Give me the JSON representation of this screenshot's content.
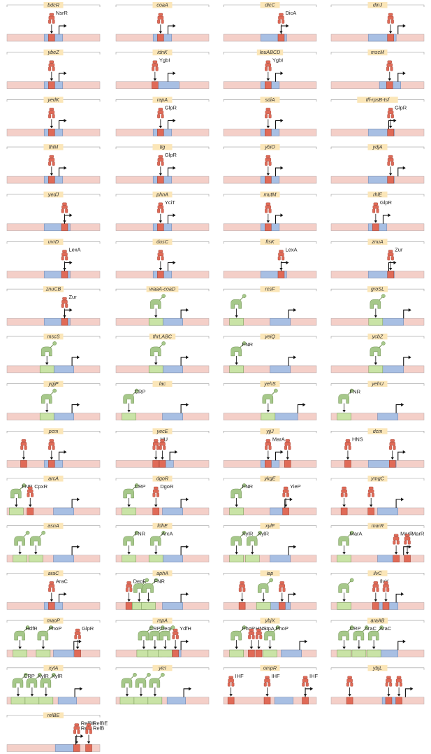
{
  "colors": {
    "background": "#ffffff",
    "dna": "#f4cfc8",
    "dna_stroke": "#b6a6a6",
    "promoter": "#a8bfe3",
    "promoter_stroke": "#6a7fa8",
    "repressor_site": "#e06a57",
    "repressor_stroke": "#9c3a2c",
    "activator_site": "#c9e3a6",
    "activator_stroke": "#6f8f50",
    "repressor_icon": "#e06a57",
    "activator_icon": "#a6c88a",
    "label_bg": "#fbe6b8",
    "arrow": "#111111"
  },
  "icons": {
    "repressor": "repressor-protein-icon",
    "activator": "activator-protein-icon",
    "tss": "transcription-start-arrow-icon"
  },
  "panels": [
    {
      "gene": "bdcR",
      "promoter": [
        0.4,
        0.6
      ],
      "sites": [
        {
          "t": "r",
          "p": 0.48,
          "tf": "NsrR"
        }
      ],
      "tss": 0.56
    },
    {
      "gene": "coaA",
      "promoter": [
        0.4,
        0.6
      ],
      "sites": [
        {
          "t": "r",
          "p": 0.48
        }
      ],
      "tss": 0.56
    },
    {
      "gene": "dicC",
      "promoter": [
        0.4,
        0.68
      ],
      "sites": [
        {
          "t": "r",
          "p": 0.62,
          "tf": "DicA"
        }
      ],
      "tss": 0.62
    },
    {
      "gene": "dinJ",
      "promoter": [
        0.4,
        0.7
      ],
      "sites": [
        {
          "t": "r",
          "p": 0.64
        }
      ],
      "tss": 0.72
    },
    {
      "gene": "ybeZ",
      "promoter": [
        0.4,
        0.6
      ],
      "sites": [
        {
          "t": "r",
          "p": 0.48
        }
      ],
      "tss": 0.56
    },
    {
      "gene": "idnK",
      "promoter": [
        0.4,
        0.68
      ],
      "sites": [
        {
          "t": "r",
          "p": 0.42,
          "tf": "YgbI"
        }
      ],
      "tss": 0.56
    },
    {
      "gene": "leuABCD",
      "promoter": [
        0.4,
        0.6
      ],
      "sites": [
        {
          "t": "r",
          "p": 0.48,
          "tf": "YgbI"
        }
      ],
      "tss": 0.56
    },
    {
      "gene": "mscM",
      "promoter": [
        0.52,
        0.75
      ],
      "sites": [
        {
          "t": "r",
          "p": 0.63
        }
      ],
      "tss": 0.72
    },
    {
      "gene": "yedK",
      "promoter": [
        0.4,
        0.6
      ],
      "sites": [
        {
          "t": "r",
          "p": 0.48
        }
      ],
      "tss": 0.56
    },
    {
      "gene": "rapA",
      "promoter": [
        0.4,
        0.6
      ],
      "sites": [
        {
          "t": "r",
          "p": 0.48,
          "tf": "GlpR"
        }
      ],
      "tss": 0.56
    },
    {
      "gene": "sdiA",
      "promoter": [
        0.4,
        0.6
      ],
      "sites": [
        {
          "t": "r",
          "p": 0.48
        }
      ],
      "tss": 0.56
    },
    {
      "gene": "tff-rpsB-tsf",
      "promoter": [
        0.4,
        0.68
      ],
      "sites": [
        {
          "t": "r",
          "p": 0.64,
          "tf": "GlpR"
        }
      ],
      "tss": 0.62
    },
    {
      "gene": "thiM",
      "promoter": [
        0.4,
        0.6
      ],
      "sites": [
        {
          "t": "r",
          "p": 0.48
        }
      ],
      "tss": 0.56
    },
    {
      "gene": "tig",
      "promoter": [
        0.4,
        0.6
      ],
      "sites": [
        {
          "t": "r",
          "p": 0.48,
          "tf": "GlpR"
        }
      ],
      "tss": 0.56
    },
    {
      "gene": "ybiO",
      "promoter": [
        0.4,
        0.6
      ],
      "sites": [
        {
          "t": "r",
          "p": 0.48
        }
      ],
      "tss": 0.56
    },
    {
      "gene": "ydjA",
      "promoter": [
        0.4,
        0.68
      ],
      "sites": [
        {
          "t": "r",
          "p": 0.64
        }
      ],
      "tss": 0.72
    },
    {
      "gene": "yedJ",
      "promoter": [
        0.4,
        0.68
      ],
      "sites": [
        {
          "t": "r",
          "p": 0.62
        }
      ],
      "tss": 0.62
    },
    {
      "gene": "phnA",
      "promoter": [
        0.4,
        0.6
      ],
      "sites": [
        {
          "t": "r",
          "p": 0.48,
          "tf": "YciT"
        }
      ],
      "tss": 0.56
    },
    {
      "gene": "mutM",
      "promoter": [
        0.4,
        0.6
      ],
      "sites": [
        {
          "t": "r",
          "p": 0.48
        }
      ],
      "tss": 0.56
    },
    {
      "gene": "rhlE",
      "promoter": [
        0.4,
        0.6
      ],
      "sites": [
        {
          "t": "r",
          "p": 0.48,
          "tf": "GlpR"
        }
      ],
      "tss": 0.56
    },
    {
      "gene": "uvrD",
      "promoter": [
        0.4,
        0.68
      ],
      "sites": [
        {
          "t": "r",
          "p": 0.62,
          "tf": "LexA"
        }
      ],
      "tss": 0.62
    },
    {
      "gene": "dusC",
      "promoter": [
        0.4,
        0.6
      ],
      "sites": [
        {
          "t": "r",
          "p": 0.48
        }
      ],
      "tss": 0.56
    },
    {
      "gene": "ftsK",
      "promoter": [
        0.4,
        0.68
      ],
      "sites": [
        {
          "t": "r",
          "p": 0.62,
          "tf": "LexA"
        }
      ],
      "tss": 0.62
    },
    {
      "gene": "znuA",
      "promoter": [
        0.4,
        0.68
      ],
      "sites": [
        {
          "t": "r",
          "p": 0.64,
          "tf": "Zur"
        }
      ],
      "tss": 0.62
    },
    {
      "gene": "znuCB",
      "promoter": [
        0.4,
        0.68
      ],
      "sites": [
        {
          "t": "r",
          "p": 0.62,
          "tf": "Zur"
        }
      ],
      "tss": 0.62
    },
    {
      "gene": "waaA-coaD",
      "promoter": [
        0.5,
        0.72
      ],
      "sites": [
        {
          "t": "a",
          "p": 0.43
        }
      ],
      "tss": 0.7
    },
    {
      "gene": "rcsF",
      "promoter": [
        0.5,
        0.72
      ],
      "sites": [
        {
          "t": "a",
          "p": 0.14
        }
      ],
      "tss": 0.7
    },
    {
      "gene": "groSL",
      "promoter": [
        0.55,
        0.78
      ],
      "sites": [
        {
          "t": "a",
          "p": 0.48
        }
      ],
      "tss": 0.78
    },
    {
      "gene": "mscS",
      "promoter": [
        0.5,
        0.72
      ],
      "sites": [
        {
          "t": "a",
          "p": 0.43
        }
      ],
      "tss": 0.7
    },
    {
      "gene": "thrLABC",
      "promoter": [
        0.5,
        0.72
      ],
      "sites": [
        {
          "t": "a",
          "p": 0.43
        }
      ],
      "tss": 0.7
    },
    {
      "gene": "yeiQ",
      "promoter": [
        0.5,
        0.72
      ],
      "sites": [
        {
          "t": "a",
          "p": 0.14,
          "tf": "FNR"
        }
      ],
      "tss": 0.7
    },
    {
      "gene": "ycbZ",
      "promoter": [
        0.55,
        0.78
      ],
      "sites": [
        {
          "t": "a",
          "p": 0.48
        }
      ],
      "tss": 0.78
    },
    {
      "gene": "ygjP",
      "promoter": [
        0.5,
        0.72
      ],
      "sites": [
        {
          "t": "a",
          "p": 0.43
        }
      ],
      "tss": 0.7
    },
    {
      "gene": "lac",
      "promoter": [
        0.5,
        0.72
      ],
      "sites": [
        {
          "t": "a",
          "p": 0.14,
          "tf": "CRP"
        }
      ],
      "tss": 0.7
    },
    {
      "gene": "yehS",
      "promoter": [
        0.55,
        0.8
      ],
      "sites": [
        {
          "t": "a",
          "p": 0.48
        }
      ],
      "tss": 0.8
    },
    {
      "gene": "yehU",
      "promoter": [
        0.5,
        0.72
      ],
      "sites": [
        {
          "t": "a",
          "p": 0.14,
          "tf": "FNR"
        }
      ],
      "tss": 0.7
    },
    {
      "gene": "pcm",
      "promoter": [
        0.4,
        0.6
      ],
      "sites": [
        {
          "t": "r",
          "p": 0.18
        },
        {
          "t": "r",
          "p": 0.48
        }
      ],
      "tss": 0.56
    },
    {
      "gene": "yecE",
      "promoter": [
        0.4,
        0.62
      ],
      "sites": [
        {
          "t": "r",
          "p": 0.43,
          "tf": "HU"
        },
        {
          "t": "r",
          "p": 0.5
        }
      ],
      "tss": 0.58
    },
    {
      "gene": "yjjJ",
      "promoter": [
        0.4,
        0.6
      ],
      "sites": [
        {
          "t": "r",
          "p": 0.48,
          "tf": "MarA"
        },
        {
          "t": "r",
          "p": 0.69
        }
      ],
      "tss": 0.56
    },
    {
      "gene": "dcm",
      "promoter": [
        0.4,
        0.7
      ],
      "sites": [
        {
          "t": "r",
          "p": 0.18,
          "tf": "HNS"
        },
        {
          "t": "r",
          "p": 0.66
        }
      ],
      "tss": 0.72
    },
    {
      "gene": "arcA",
      "promoter": [
        0.5,
        0.72
      ],
      "sites": [
        {
          "t": "a",
          "p": 0.1,
          "tf": "FNR"
        },
        {
          "t": "r",
          "p": 0.25,
          "tf": "CpxR"
        }
      ],
      "tss": 0.7
    },
    {
      "gene": "dgoR",
      "promoter": [
        0.5,
        0.72
      ],
      "sites": [
        {
          "t": "a",
          "p": 0.14,
          "tf": "CRP"
        },
        {
          "t": "r",
          "p": 0.43,
          "tf": "DgoR"
        }
      ],
      "tss": 0.7
    },
    {
      "gene": "ykgE",
      "promoter": [
        0.5,
        0.68
      ],
      "sites": [
        {
          "t": "a",
          "p": 0.14,
          "tf": "FNR"
        },
        {
          "t": "r",
          "p": 0.67,
          "tf": "YieP"
        }
      ],
      "tss": 0.66
    },
    {
      "gene": "ymgC",
      "promoter": [
        0.5,
        0.72
      ],
      "sites": [
        {
          "t": "r",
          "p": 0.14
        },
        {
          "t": "r",
          "p": 0.43
        }
      ],
      "tss": 0.7
    },
    {
      "gene": "asnA",
      "promoter": [
        0.5,
        0.72
      ],
      "sites": [
        {
          "t": "a",
          "p": 0.14
        },
        {
          "t": "a",
          "p": 0.31
        }
      ],
      "tss": 0.7
    },
    {
      "gene": "fdhE",
      "promoter": [
        0.5,
        0.72
      ],
      "sites": [
        {
          "t": "a",
          "p": 0.14,
          "tf": "FNR"
        },
        {
          "t": "a",
          "p": 0.43,
          "tf": "ArcA"
        }
      ],
      "tss": 0.7
    },
    {
      "gene": "xylF",
      "promoter": [
        0.5,
        0.72
      ],
      "sites": [
        {
          "t": "a",
          "p": 0.14,
          "tf": "XylR"
        },
        {
          "t": "a",
          "p": 0.31,
          "tf": "XylR"
        }
      ],
      "tss": 0.7
    },
    {
      "gene": "marR",
      "promoter": [
        0.5,
        0.72
      ],
      "sites": [
        {
          "t": "a",
          "p": 0.14,
          "tf": "MarA"
        },
        {
          "t": "r",
          "p": 0.7,
          "tf": "MarR"
        },
        {
          "t": "r",
          "p": 0.82,
          "tf": "MarR"
        }
      ],
      "tss": 0.78
    },
    {
      "gene": "araC",
      "promoter": [
        0.4,
        0.6
      ],
      "sites": [
        {
          "t": "r",
          "p": 0.48,
          "tf": "AraC"
        }
      ],
      "tss": 0.56
    },
    {
      "gene": "aphA",
      "promoter": [
        0.5,
        0.72
      ],
      "sites": [
        {
          "t": "r",
          "p": 0.14,
          "tf": "DeoR"
        },
        {
          "t": "a",
          "p": 0.25
        },
        {
          "t": "a",
          "p": 0.35,
          "tf": "FNR"
        }
      ],
      "tss": 0.7
    },
    {
      "gene": "iap",
      "promoter": [
        0.5,
        0.72
      ],
      "sites": [
        {
          "t": "r",
          "p": 0.2
        },
        {
          "t": "a",
          "p": 0.43
        },
        {
          "t": "r",
          "p": 0.63
        }
      ],
      "tss": 0.7
    },
    {
      "gene": "ilvC",
      "promoter": [
        0.5,
        0.72
      ],
      "sites": [
        {
          "t": "a",
          "p": 0.14
        },
        {
          "t": "r",
          "p": 0.48,
          "tf": "IlvY"
        },
        {
          "t": "r",
          "p": 0.59
        }
      ],
      "tss": 0.7
    },
    {
      "gene": "maoP",
      "promoter": [
        0.5,
        0.72
      ],
      "sites": [
        {
          "t": "a",
          "p": 0.14,
          "tf": "HdfR"
        },
        {
          "t": "a",
          "p": 0.39,
          "tf": "PhoP"
        },
        {
          "t": "r",
          "p": 0.76,
          "tf": "GlpR"
        }
      ],
      "tss": 0.72
    },
    {
      "gene": "rspA",
      "promoter": [
        0.55,
        0.7
      ],
      "sites": [
        {
          "t": "a",
          "p": 0.3,
          "tf": "CRP"
        },
        {
          "t": "a",
          "p": 0.42,
          "tf": "DeoR"
        },
        {
          "t": "a",
          "p": 0.53
        },
        {
          "t": "r",
          "p": 0.64,
          "tf": "YdfH"
        }
      ],
      "tss": 0.7
    },
    {
      "gene": "ybjX",
      "promoter": [
        0.62,
        0.84
      ],
      "sites": [
        {
          "t": "a",
          "p": 0.14,
          "tf": "PhoP"
        },
        {
          "t": "r",
          "p": 0.3,
          "tf": "HNS"
        },
        {
          "t": "r",
          "p": 0.38,
          "tf": "StpA"
        },
        {
          "t": "a",
          "p": 0.5,
          "tf": "PhoP"
        }
      ],
      "tss": 0.82
    },
    {
      "gene": "araAB",
      "promoter": [
        0.5,
        0.72
      ],
      "sites": [
        {
          "t": "a",
          "p": 0.14,
          "tf": "CRP"
        },
        {
          "t": "a",
          "p": 0.3,
          "tf": "AraC"
        },
        {
          "t": "a",
          "p": 0.46,
          "tf": "AraC"
        }
      ],
      "tss": 0.72
    },
    {
      "gene": "xylA",
      "promoter": [
        0.55,
        0.75
      ],
      "sites": [
        {
          "t": "a",
          "p": 0.12,
          "tf": "CRP"
        },
        {
          "t": "a",
          "p": 0.27,
          "tf": "XylR"
        },
        {
          "t": "a",
          "p": 0.42,
          "tf": "XylR"
        }
      ],
      "tss": 0.73
    },
    {
      "gene": "yicI",
      "promoter": [
        0.55,
        0.75
      ],
      "sites": [
        {
          "t": "a",
          "p": 0.12
        },
        {
          "t": "a",
          "p": 0.27
        },
        {
          "t": "a",
          "p": 0.42
        }
      ],
      "tss": 0.73
    },
    {
      "gene": "ompR",
      "promoter": [
        0.55,
        0.75
      ],
      "sites": [
        {
          "t": "r",
          "p": 0.08,
          "tf": "IHF"
        },
        {
          "t": "r",
          "p": 0.47,
          "tf": "IHF"
        },
        {
          "t": "r",
          "p": 0.88,
          "tf": "IHF"
        }
      ],
      "tss": 0.88
    },
    {
      "gene": "ybjL",
      "promoter": [
        0.55,
        0.75
      ],
      "sites": [
        {
          "t": "r",
          "p": 0.2
        },
        {
          "t": "r",
          "p": 0.62
        },
        {
          "t": "r",
          "p": 0.73
        }
      ],
      "tss": 0.8
    },
    {
      "gene": "relBE",
      "promoter": [
        0.52,
        0.72
      ],
      "sites": [
        {
          "t": "r",
          "p": 0.75,
          "tf": "RelBE",
          "tf2": "RelB"
        },
        {
          "t": "r",
          "p": 0.88,
          "tf": "RelBE",
          "tf2": "RelB"
        }
      ],
      "tss": 0.74
    }
  ]
}
